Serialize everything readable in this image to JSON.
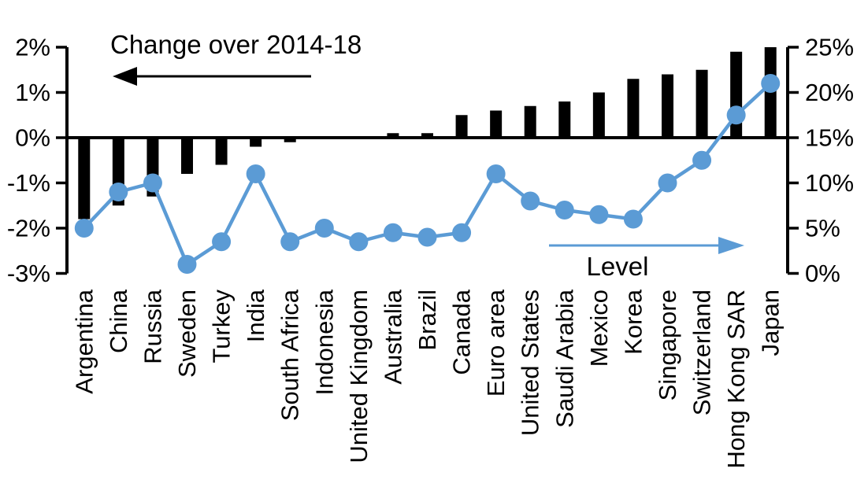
{
  "chart_data": {
    "type": "bar",
    "subtype": "combo-bar-line-dual-axis",
    "categories": [
      "Argentina",
      "China",
      "Russia",
      "Sweden",
      "Turkey",
      "India",
      "South Africa",
      "Indonesia",
      "United Kingdom",
      "Australia",
      "Brazil",
      "Canada",
      "Euro area",
      "United States",
      "Saudi Arabia",
      "Mexico",
      "Korea",
      "Singapore",
      "Switzerland",
      "Hong Kong SAR",
      "Japan"
    ],
    "series": [
      {
        "name": "Change over 2014-18",
        "type": "bar",
        "axis": "left",
        "color": "#000000",
        "values": [
          -1.8,
          -1.5,
          -1.3,
          -0.8,
          -0.6,
          -0.2,
          -0.1,
          0.0,
          0.0,
          0.1,
          0.1,
          0.5,
          0.6,
          0.7,
          0.8,
          1.0,
          1.3,
          1.4,
          1.5,
          1.9,
          2.0
        ]
      },
      {
        "name": "Level",
        "type": "line",
        "axis": "right",
        "color": "#5B9BD5",
        "values": [
          5,
          9,
          10,
          1,
          3.5,
          11,
          3.5,
          5,
          3.5,
          4.5,
          4,
          4.5,
          11,
          8,
          7,
          6.5,
          6,
          10,
          12.5,
          17.5,
          21
        ]
      }
    ],
    "left_axis": {
      "tick_labels": [
        "2%",
        "1%",
        "0%",
        "-1%",
        "-2%",
        "-3%"
      ],
      "tick_values": [
        2,
        1,
        0,
        -1,
        -2,
        -3
      ],
      "range": [
        -3,
        2
      ]
    },
    "right_axis": {
      "tick_labels": [
        "25%",
        "20%",
        "15%",
        "10%",
        "5%",
        "0%"
      ],
      "tick_values": [
        25,
        20,
        15,
        10,
        5,
        0
      ],
      "range": [
        0,
        25
      ]
    },
    "annotations": {
      "left": {
        "label": "Change over 2014-18",
        "arrow_direction": "left",
        "arrow_color": "#000000"
      },
      "right": {
        "label": "Level",
        "arrow_direction": "right",
        "arrow_color": "#5B9BD5"
      }
    },
    "grid": "off",
    "legend": "none",
    "colors": {
      "bar": "#000000",
      "line": "#5B9BD5",
      "background": "#ffffff"
    }
  }
}
